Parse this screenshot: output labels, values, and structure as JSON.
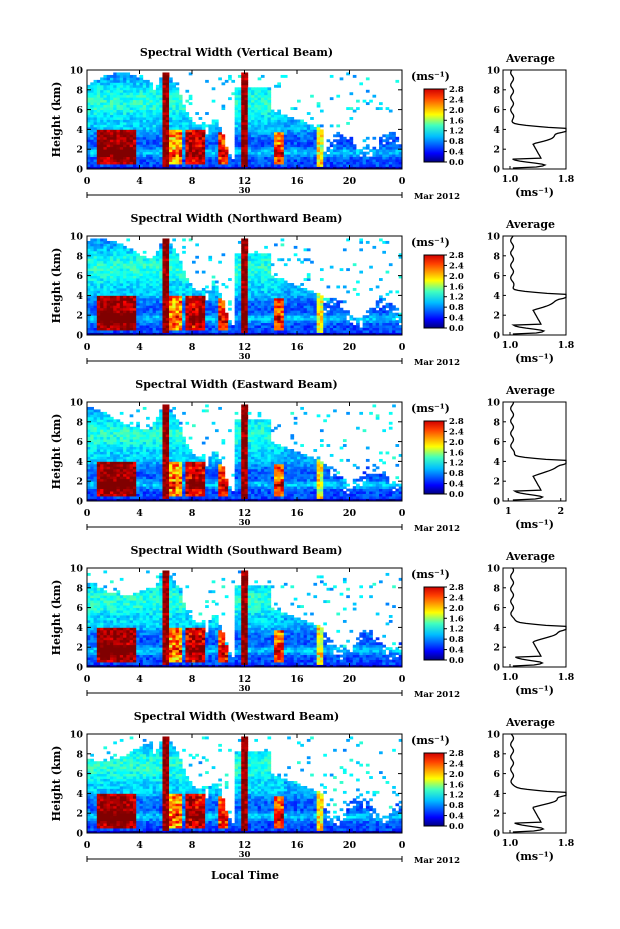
{
  "figure": {
    "xlabel_bottom": "Local Time",
    "date_label": "Mar 2012",
    "day_label": "30",
    "ylabel": "Height (km)",
    "unit_label": "(ms⁻¹)",
    "avg_title": "Average",
    "avg_xlabel": "(ms⁻¹)"
  },
  "chart_data": [
    {
      "type": "heatmap",
      "title": "Spectral Width (Vertical Beam)",
      "xlabel": "Local Time",
      "ylabel": "Height (km)",
      "x_ticks": [
        "0",
        "4",
        "8",
        "12",
        "16",
        "20",
        "0"
      ],
      "y_ticks": [
        "0",
        "2",
        "4",
        "6",
        "8",
        "10"
      ],
      "xlim": [
        0,
        24
      ],
      "ylim": [
        0,
        10
      ],
      "colorbar": {
        "label": "(ms⁻¹)",
        "ticks": [
          "0.0",
          "0.4",
          "0.8",
          "1.2",
          "1.6",
          "2.0",
          "2.4",
          "2.8"
        ],
        "range": [
          0,
          2.8
        ]
      },
      "average_profile": {
        "title": "Average",
        "xlabel": "(ms⁻¹)",
        "x_ticks": [
          "1.0",
          "1.8"
        ],
        "xlim": [
          0.9,
          1.8
        ],
        "y_ticks": [
          "0",
          "2",
          "4",
          "6",
          "8",
          "10"
        ],
        "peak_height_km": 4.0
      }
    },
    {
      "type": "heatmap",
      "title": "Spectral Width (Northward Beam)",
      "xlabel": "Local Time",
      "ylabel": "Height (km)",
      "x_ticks": [
        "0",
        "4",
        "8",
        "12",
        "16",
        "20",
        "0"
      ],
      "y_ticks": [
        "0",
        "2",
        "4",
        "6",
        "8",
        "10"
      ],
      "xlim": [
        0,
        24
      ],
      "ylim": [
        0,
        10
      ],
      "colorbar": {
        "label": "(ms⁻¹)",
        "ticks": [
          "0.0",
          "0.4",
          "0.8",
          "1.2",
          "1.6",
          "2.0",
          "2.4",
          "2.8"
        ],
        "range": [
          0,
          2.8
        ]
      },
      "average_profile": {
        "title": "Average",
        "xlabel": "(ms⁻¹)",
        "x_ticks": [
          "1.0",
          "1.8"
        ],
        "xlim": [
          0.9,
          1.8
        ],
        "y_ticks": [
          "0",
          "2",
          "4",
          "6",
          "8",
          "10"
        ],
        "peak_height_km": 4.2
      }
    },
    {
      "type": "heatmap",
      "title": "Spectral Width (Eastward Beam)",
      "xlabel": "Local Time",
      "ylabel": "Height (km)",
      "x_ticks": [
        "0",
        "4",
        "8",
        "12",
        "16",
        "20",
        "0"
      ],
      "y_ticks": [
        "0",
        "2",
        "4",
        "6",
        "8",
        "10"
      ],
      "xlim": [
        0,
        24
      ],
      "ylim": [
        0,
        10
      ],
      "colorbar": {
        "label": "(ms⁻¹)",
        "ticks": [
          "0.0",
          "0.4",
          "0.8",
          "1.2",
          "1.6",
          "2.0",
          "2.4",
          "2.8"
        ],
        "range": [
          0,
          2.8
        ]
      },
      "average_profile": {
        "title": "Average",
        "xlabel": "(ms⁻¹)",
        "x_ticks": [
          "1",
          "2"
        ],
        "xlim": [
          0.9,
          2.1
        ],
        "y_ticks": [
          "0",
          "2",
          "4",
          "6",
          "8",
          "10"
        ],
        "peak_height_km": 4.0
      }
    },
    {
      "type": "heatmap",
      "title": "Spectral Width (Southward Beam)",
      "xlabel": "Local Time",
      "ylabel": "Height (km)",
      "x_ticks": [
        "0",
        "4",
        "8",
        "12",
        "16",
        "20",
        "0"
      ],
      "y_ticks": [
        "0",
        "2",
        "4",
        "6",
        "8",
        "10"
      ],
      "xlim": [
        0,
        24
      ],
      "ylim": [
        0,
        10
      ],
      "colorbar": {
        "label": "(ms⁻¹)",
        "ticks": [
          "0.0",
          "0.4",
          "0.8",
          "1.2",
          "1.6",
          "2.0",
          "2.4",
          "2.8"
        ],
        "range": [
          0,
          2.8
        ]
      },
      "average_profile": {
        "title": "Average",
        "xlabel": "(ms⁻¹)",
        "x_ticks": [
          "1.0",
          "1.8"
        ],
        "xlim": [
          0.9,
          1.8
        ],
        "y_ticks": [
          "0",
          "2",
          "4",
          "6",
          "8",
          "10"
        ],
        "peak_height_km": 4.2
      }
    },
    {
      "type": "heatmap",
      "title": "Spectral Width (Westward Beam)",
      "xlabel": "Local Time",
      "ylabel": "Height (km)",
      "x_ticks": [
        "0",
        "4",
        "8",
        "12",
        "16",
        "20",
        "0"
      ],
      "y_ticks": [
        "0",
        "2",
        "4",
        "6",
        "8",
        "10"
      ],
      "xlim": [
        0,
        24
      ],
      "ylim": [
        0,
        10
      ],
      "colorbar": {
        "label": "(ms⁻¹)",
        "ticks": [
          "0.0",
          "0.4",
          "0.8",
          "1.2",
          "1.6",
          "2.0",
          "2.4",
          "2.8"
        ],
        "range": [
          0,
          2.8
        ]
      },
      "average_profile": {
        "title": "Average",
        "xlabel": "(ms⁻¹)",
        "x_ticks": [
          "1.0",
          "1.8"
        ],
        "xlim": [
          0.9,
          1.8
        ],
        "y_ticks": [
          "0",
          "2",
          "4",
          "6",
          "8",
          "10"
        ],
        "peak_height_km": 4.3
      }
    }
  ]
}
